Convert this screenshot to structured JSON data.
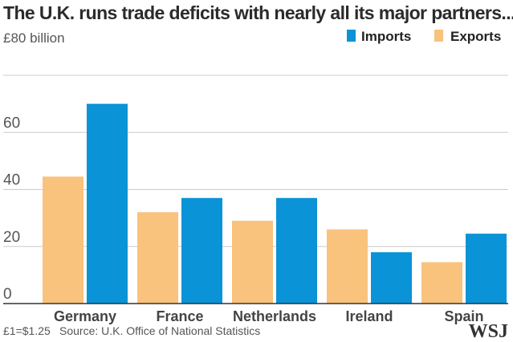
{
  "chart_data": {
    "type": "bar",
    "title": "The U.K. runs trade deficits with nearly all its major partners...",
    "ylabel": "£80 billion",
    "categories": [
      "Germany",
      "France",
      "Netherlands",
      "Ireland",
      "Spain"
    ],
    "series": [
      {
        "name": "Exports",
        "values": [
          44.5,
          32,
          29,
          26,
          14.5
        ],
        "color": "#f9c27d"
      },
      {
        "name": "Imports",
        "values": [
          70,
          37,
          37,
          18,
          24.5
        ],
        "color": "#0a93d6"
      }
    ],
    "ylim": [
      0,
      80
    ],
    "yticks": [
      0,
      20,
      40,
      60
    ],
    "legend": {
      "order": [
        "Imports",
        "Exports"
      ],
      "placement": "top-right"
    },
    "grid": true
  },
  "footer": {
    "conversion_note": "£1=$1.25",
    "source": "Source: U.K. Office of National Statistics",
    "logo": "WSJ"
  }
}
